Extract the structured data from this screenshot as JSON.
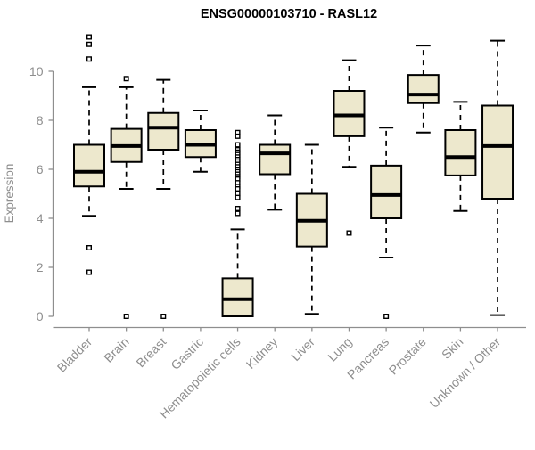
{
  "chart_data": {
    "type": "boxplot",
    "title": "ENSG00000103710 - RASL12",
    "ylabel": "Expression",
    "xlabel": "",
    "yticks": [
      0,
      2,
      4,
      6,
      8,
      10
    ],
    "ylim": [
      -0.4,
      11.6
    ],
    "grid": false,
    "legend": "none",
    "colors": {
      "box_fill": "#ede8cd",
      "box_line": "#000000",
      "axis": "#8e8e8e",
      "title": "#000000",
      "background": "#ffffff"
    },
    "categories": [
      "Bladder",
      "Brain",
      "Breast",
      "Gastric",
      "Hematopoietic cells",
      "Kidney",
      "Liver",
      "Lung",
      "Pancreas",
      "Prostate",
      "Skin",
      "Unknown / Other"
    ],
    "boxes": [
      {
        "category": "Bladder",
        "whisker_low": 4.1,
        "q1": 5.3,
        "median": 5.9,
        "q3": 7.0,
        "whisker_high": 9.35,
        "outliers": [
          11.4,
          11.1,
          10.5,
          2.8,
          1.8
        ]
      },
      {
        "category": "Brain",
        "whisker_low": 5.2,
        "q1": 6.3,
        "median": 6.95,
        "q3": 7.65,
        "whisker_high": 9.35,
        "outliers": [
          9.7,
          0.0
        ]
      },
      {
        "category": "Breast",
        "whisker_low": 5.2,
        "q1": 6.8,
        "median": 7.7,
        "q3": 8.3,
        "whisker_high": 9.65,
        "outliers": [
          0.0
        ]
      },
      {
        "category": "Gastric",
        "whisker_low": 5.9,
        "q1": 6.5,
        "median": 7.0,
        "q3": 7.6,
        "whisker_high": 8.4,
        "outliers": []
      },
      {
        "category": "Hematopoietic cells",
        "whisker_low": 0.0,
        "q1": 0.0,
        "median": 0.7,
        "q3": 1.55,
        "whisker_high": 3.55,
        "outliers": [
          7.5,
          7.35,
          7.0,
          6.8,
          6.7,
          6.6,
          6.5,
          6.4,
          6.3,
          6.2,
          6.1,
          6.0,
          5.9,
          5.8,
          5.7,
          5.6,
          5.45,
          5.3,
          5.2,
          5.0,
          4.85,
          4.4,
          4.2
        ]
      },
      {
        "category": "Kidney",
        "whisker_low": 4.35,
        "q1": 5.8,
        "median": 6.65,
        "q3": 7.0,
        "whisker_high": 8.2,
        "outliers": []
      },
      {
        "category": "Liver",
        "whisker_low": 0.1,
        "q1": 2.85,
        "median": 3.9,
        "q3": 5.0,
        "whisker_high": 7.0,
        "outliers": []
      },
      {
        "category": "Lung",
        "whisker_low": 6.1,
        "q1": 7.35,
        "median": 8.2,
        "q3": 9.2,
        "whisker_high": 10.45,
        "outliers": [
          3.4
        ]
      },
      {
        "category": "Pancreas",
        "whisker_low": 2.4,
        "q1": 4.0,
        "median": 4.95,
        "q3": 6.15,
        "whisker_high": 7.7,
        "outliers": [
          0.0
        ]
      },
      {
        "category": "Prostate",
        "whisker_low": 7.5,
        "q1": 8.7,
        "median": 9.05,
        "q3": 9.85,
        "whisker_high": 11.05,
        "outliers": []
      },
      {
        "category": "Skin",
        "whisker_low": 4.3,
        "q1": 5.75,
        "median": 6.5,
        "q3": 7.6,
        "whisker_high": 8.75,
        "outliers": []
      },
      {
        "category": "Unknown / Other",
        "whisker_low": 0.05,
        "q1": 4.8,
        "median": 6.95,
        "q3": 8.6,
        "whisker_high": 11.25,
        "outliers": []
      }
    ]
  }
}
